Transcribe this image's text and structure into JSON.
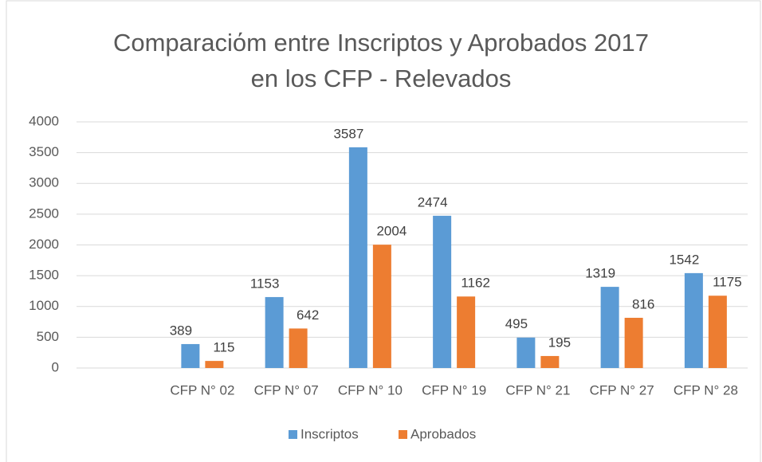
{
  "chart_data": {
    "type": "bar",
    "title": [
      "Comparaciόm entre Inscriptos y Aprobados 2017",
      "en los CFP - Relevados"
    ],
    "categories": [
      null,
      "CFP N° 02",
      "CFP N° 07",
      "CFP N° 10",
      "CFP N° 19",
      "CFP N° 21",
      "CFP N° 27",
      "CFP N° 28"
    ],
    "series": [
      {
        "name": "Inscriptos",
        "color": "#5b9bd5",
        "values": [
          null,
          389,
          1153,
          3587,
          2474,
          495,
          1319,
          1542
        ]
      },
      {
        "name": "Aprobados",
        "color": "#ed7d31",
        "values": [
          null,
          115,
          642,
          2004,
          1162,
          195,
          816,
          1175
        ]
      }
    ],
    "ylim": [
      0,
      4000
    ],
    "yticks": [
      0,
      500,
      1000,
      1500,
      2000,
      2500,
      3000,
      3500,
      4000
    ],
    "grid": true,
    "legend": "bottom",
    "data_labels": true
  }
}
